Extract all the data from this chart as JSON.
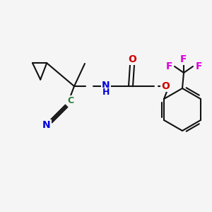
{
  "colors": {
    "N": "#0000dd",
    "O": "#cc0000",
    "C_cn": "#2a7a3a",
    "F": "#dd00dd",
    "bond": "#111111",
    "bg": "#f5f5f5"
  },
  "figsize": [
    3.0,
    3.0
  ],
  "dpi": 100
}
